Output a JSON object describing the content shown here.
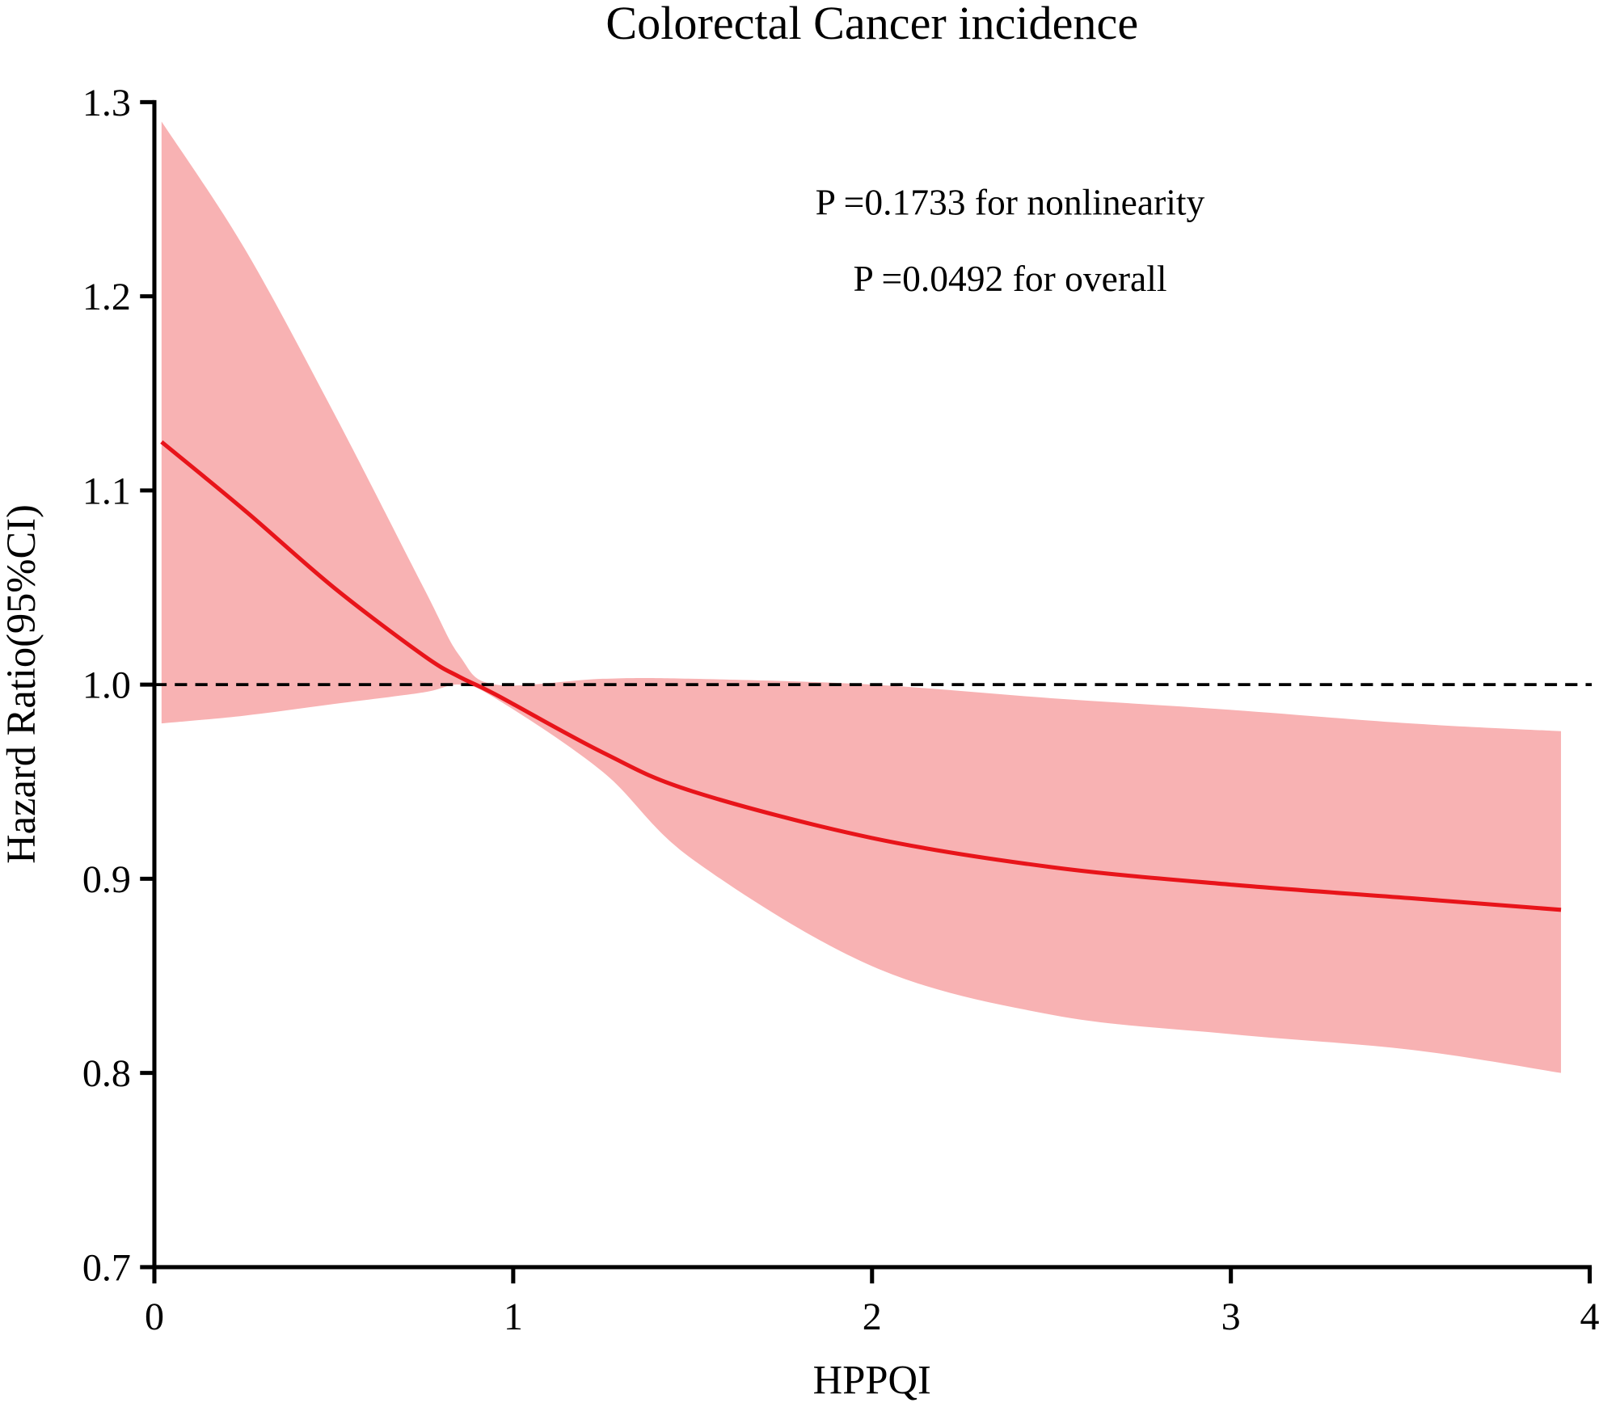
{
  "chart_data": {
    "type": "line",
    "title": "Colorectal Cancer incidence",
    "xlabel": "HPPQI",
    "ylabel": "Hazard Ratio(95%CI)",
    "xlim": [
      0,
      4
    ],
    "ylim": [
      0.7,
      1.3
    ],
    "xticks": [
      "0",
      "1",
      "2",
      "3",
      "4"
    ],
    "yticks": [
      "0.7",
      "0.8",
      "0.9",
      "1.0",
      "1.1",
      "1.2",
      "1.3"
    ],
    "reference_line": 1.0,
    "annotations": [
      "P =0.1733 for nonlinearity",
      "P =0.0492 for overall"
    ],
    "x": [
      0.02,
      0.25,
      0.5,
      0.75,
      0.85,
      0.95,
      1.25,
      1.5,
      2.0,
      2.5,
      3.0,
      3.5,
      3.92
    ],
    "series": [
      {
        "name": "HR",
        "color": "#e8141a",
        "values": [
          1.125,
          1.09,
          1.05,
          1.015,
          1.004,
          0.995,
          0.965,
          0.945,
          0.921,
          0.906,
          0.897,
          0.89,
          0.884
        ]
      },
      {
        "name": "Upper CI",
        "values": [
          1.29,
          1.225,
          1.14,
          1.05,
          1.015,
          1.0,
          1.003,
          1.003,
          1.0,
          0.993,
          0.987,
          0.98,
          0.976
        ]
      },
      {
        "name": "Lower CI",
        "values": [
          0.98,
          0.984,
          0.99,
          0.996,
          1.0,
          0.993,
          0.955,
          0.91,
          0.855,
          0.83,
          0.82,
          0.812,
          0.8
        ]
      }
    ],
    "band_color": "#f8b2b3",
    "grid": false
  }
}
